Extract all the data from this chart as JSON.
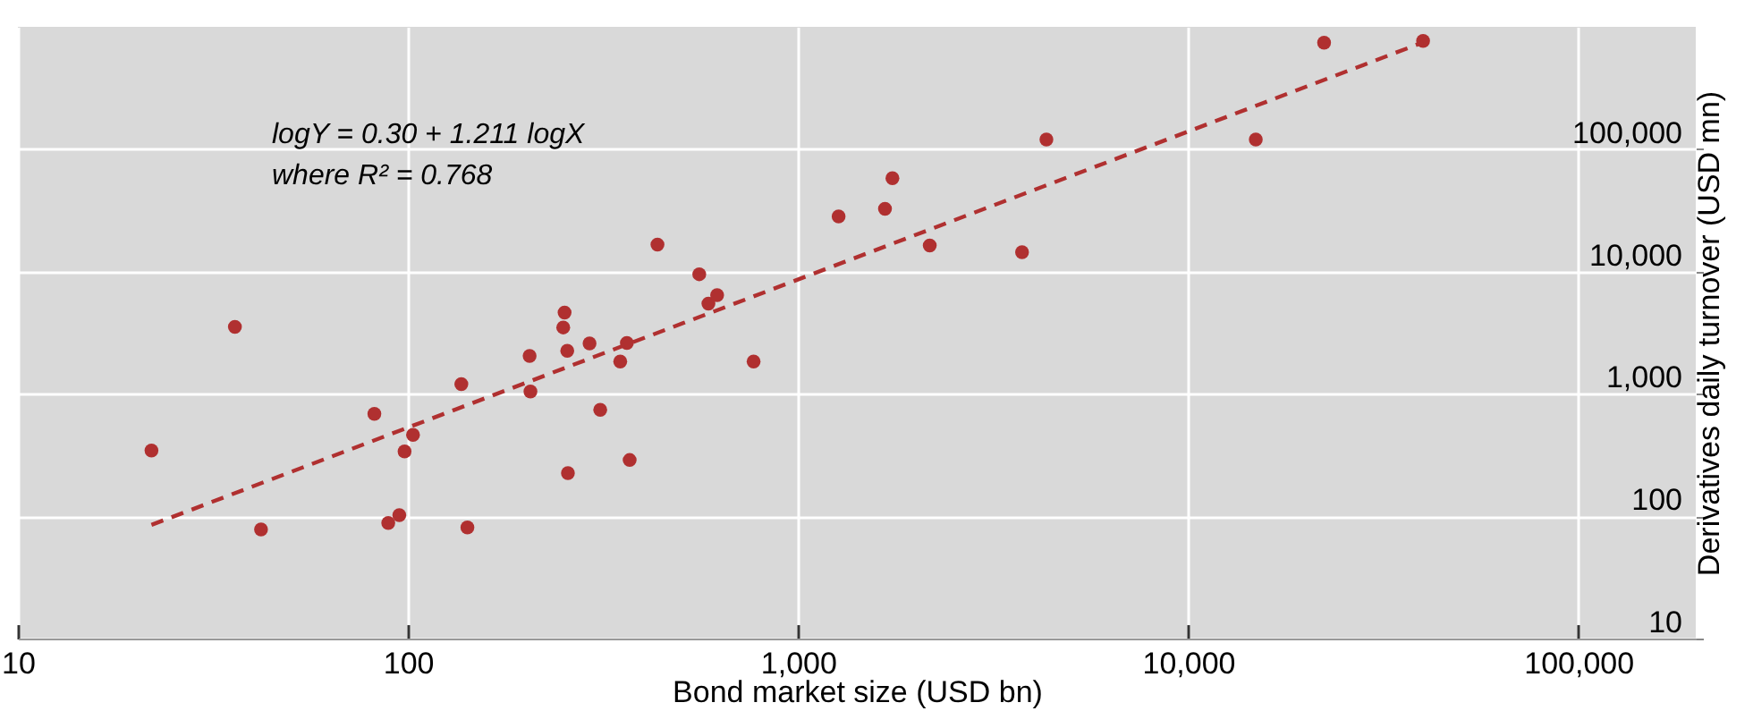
{
  "chart_data": {
    "type": "scatter",
    "xlabel": "Bond market size (USD bn)",
    "ylabel": "Derivatives daily turnover (USD mn)",
    "log": "xy",
    "grid": true,
    "annotations": [
      "logY = 0.30 + 1.211 logX",
      "where R² = 0.768"
    ],
    "xlim": [
      10,
      200000
    ],
    "xticks": [
      10,
      100,
      {
        "value": 1000,
        "label": "1,000"
      },
      {
        "value": 10000,
        "label": "10,000"
      },
      {
        "value": 100000,
        "label": "100,000"
      }
    ],
    "ylim": [
      10,
      1000000
    ],
    "yticks": [
      10,
      100,
      {
        "value": 1000,
        "label": "1,000"
      },
      {
        "value": 10000,
        "label": "10,000"
      },
      {
        "value": 100000,
        "label": "100,000"
      }
    ],
    "series": [
      {
        "color": "#b03030",
        "marker": "circle",
        "x": [
          22,
          36,
          42,
          82,
          89,
          95,
          98,
          103,
          137,
          142,
          205,
          206,
          250,
          252,
          256,
          257,
          292,
          311,
          350,
          364,
          370,
          436,
          558,
          589,
          620,
          769,
          1270,
          1670,
          1745,
          2175,
          3750,
          4330,
          14900,
          22300,
          40000
        ],
        "values": [
          344,
          3530,
          78,
          686,
          88,
          102,
          338,
          462,
          1200,
          81,
          2040,
          1047,
          3490,
          4620,
          2250,
          225,
          2580,
          741,
          1840,
          2610,
          288,
          16600,
          9500,
          5470,
          6410,
          1840,
          28200,
          32500,
          58000,
          16300,
          14400,
          120000,
          120000,
          741000,
          766000
        ]
      },
      {
        "type": "line",
        "color": "#b03030",
        "line_style": "dashed",
        "x": [
          22,
          40000
        ],
        "values": [
          85,
          747000
        ]
      }
    ]
  }
}
